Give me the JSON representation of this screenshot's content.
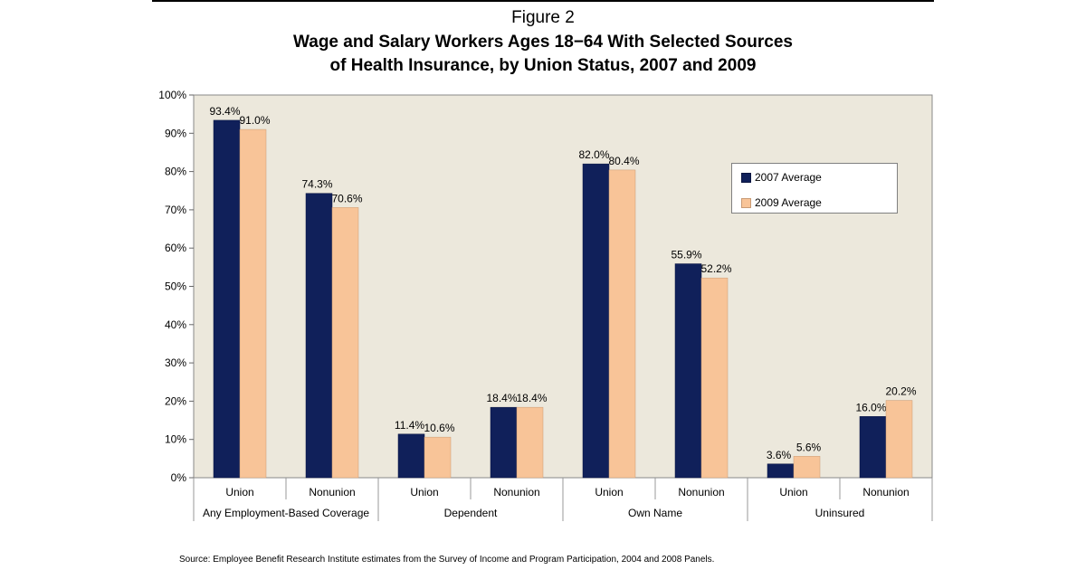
{
  "figure_label": "Figure 2",
  "title_line1": "Wage and Salary Workers Ages 18−64 With Selected Sources",
  "title_line2": "of Health Insurance, by Union Status, 2007 and 2009",
  "source": "Source: Employee Benefit Research Institute estimates from the Survey of Income and Program Participation,  2004 and 2008 Panels.",
  "chart_data": {
    "type": "bar",
    "title": "Wage and Salary Workers Ages 18−64 With Selected Sources of Health Insurance, by Union Status, 2007 and 2009",
    "groups": [
      {
        "label": "Any Employment-Based Coverage",
        "categories": [
          "Union",
          "Nonunion"
        ]
      },
      {
        "label": "Dependent",
        "categories": [
          "Union",
          "Nonunion"
        ]
      },
      {
        "label": "Own Name",
        "categories": [
          "Union",
          "Nonunion"
        ]
      },
      {
        "label": "Uninsured",
        "categories": [
          "Union",
          "Nonunion"
        ]
      }
    ],
    "categories": [
      "Union",
      "Nonunion",
      "Union",
      "Nonunion",
      "Union",
      "Nonunion",
      "Union",
      "Nonunion"
    ],
    "series": [
      {
        "name": "2007 Average",
        "color": "#10205a",
        "values": [
          93.4,
          74.3,
          11.4,
          18.4,
          82.0,
          55.9,
          3.6,
          16.0
        ],
        "labels": [
          "93.4%",
          "74.3%",
          "11.4%",
          "18.4%",
          "82.0%",
          "55.9%",
          "3.6%",
          "16.0%"
        ]
      },
      {
        "name": "2009 Average",
        "color": "#f8c498",
        "values": [
          91.0,
          70.6,
          10.6,
          18.4,
          80.4,
          52.2,
          5.6,
          20.2
        ],
        "labels": [
          "91.0%",
          "70.6%",
          "10.6%",
          "18.4%",
          "80.4%",
          "52.2%",
          "5.6%",
          "20.2%"
        ]
      }
    ],
    "y_ticks": [
      "0%",
      "10%",
      "20%",
      "30%",
      "40%",
      "50%",
      "60%",
      "70%",
      "80%",
      "90%",
      "100%"
    ],
    "ylim": [
      0,
      100
    ],
    "xlabel": "",
    "ylabel": "",
    "grid": false,
    "legend": "right",
    "plot_background": "#ece8dc"
  }
}
